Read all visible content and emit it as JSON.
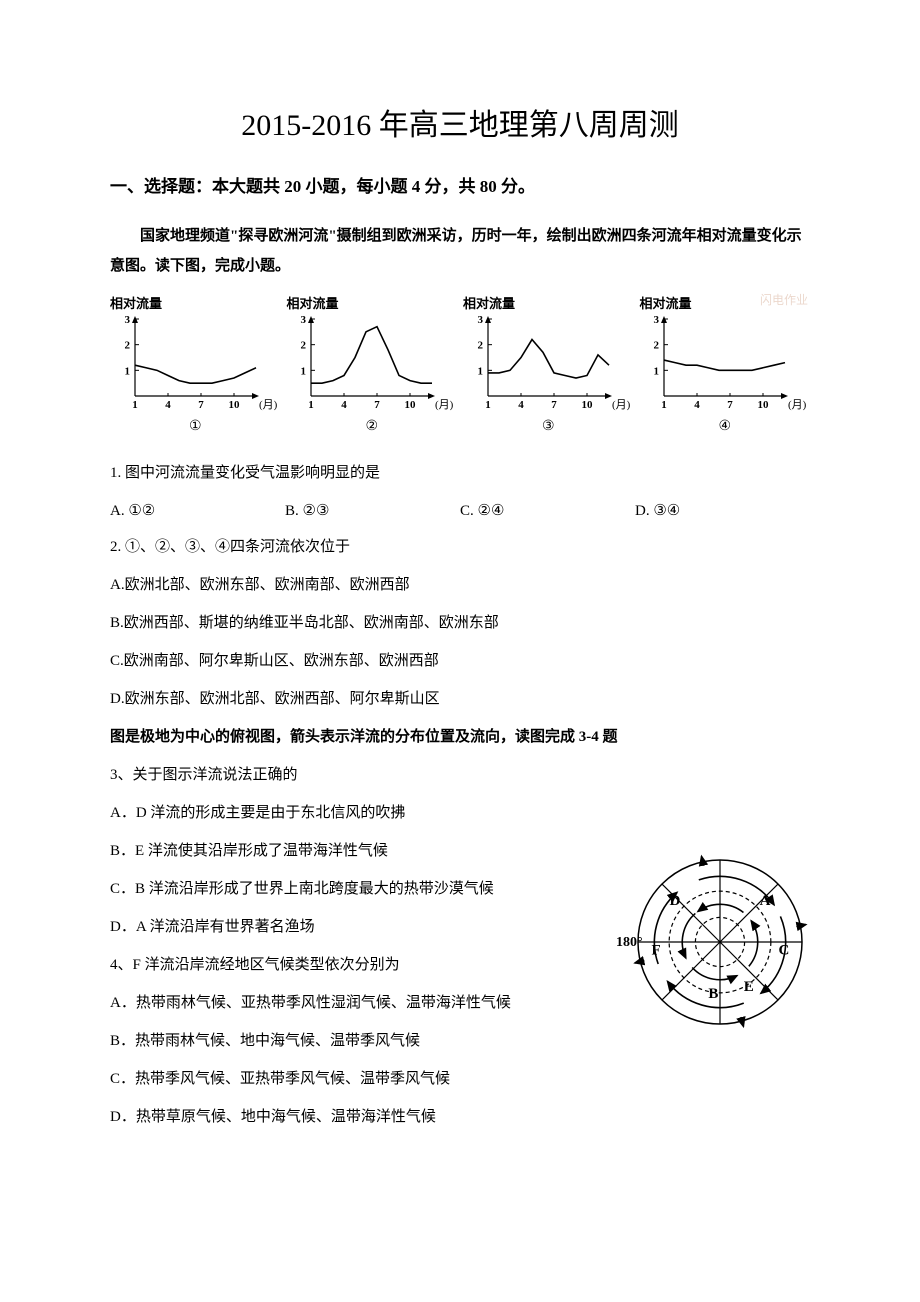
{
  "title": "2015-2016 年高三地理第八周周测",
  "section": "一、选择题：本大题共 20 小题，每小题 4 分，共 80 分。",
  "intro": "国家地理频道\"探寻欧洲河流\"摄制组到欧洲采访，历时一年，绘制出欧洲四条河流年相对流量变化示意图。读下图，完成小题。",
  "chart_meta": {
    "ylabel": "相对流量",
    "xlabel": "(月)",
    "yticks": [
      "1",
      "2",
      "3"
    ],
    "xticks": [
      "1",
      "4",
      "7",
      "10"
    ],
    "axis_color": "#000000",
    "line_color": "#000000",
    "background": "#ffffff",
    "ylim": [
      0,
      3
    ],
    "xlim": [
      1,
      12
    ],
    "captions": [
      "①",
      "②",
      "③",
      "④"
    ],
    "watermark": "闪电作业"
  },
  "chart_data": {
    "s1": [
      [
        1,
        1.2
      ],
      [
        2,
        1.1
      ],
      [
        3,
        1.0
      ],
      [
        4,
        0.8
      ],
      [
        5,
        0.6
      ],
      [
        6,
        0.5
      ],
      [
        7,
        0.5
      ],
      [
        8,
        0.5
      ],
      [
        9,
        0.6
      ],
      [
        10,
        0.7
      ],
      [
        11,
        0.9
      ],
      [
        12,
        1.1
      ]
    ],
    "s2": [
      [
        1,
        0.5
      ],
      [
        2,
        0.5
      ],
      [
        3,
        0.6
      ],
      [
        4,
        0.8
      ],
      [
        5,
        1.5
      ],
      [
        6,
        2.5
      ],
      [
        7,
        2.7
      ],
      [
        8,
        1.8
      ],
      [
        9,
        0.8
      ],
      [
        10,
        0.6
      ],
      [
        11,
        0.5
      ],
      [
        12,
        0.5
      ]
    ],
    "s3": [
      [
        1,
        0.9
      ],
      [
        2,
        0.9
      ],
      [
        3,
        1.0
      ],
      [
        4,
        1.5
      ],
      [
        5,
        2.2
      ],
      [
        6,
        1.7
      ],
      [
        7,
        0.9
      ],
      [
        8,
        0.8
      ],
      [
        9,
        0.7
      ],
      [
        10,
        0.8
      ],
      [
        11,
        1.6
      ],
      [
        12,
        1.2
      ]
    ],
    "s4": [
      [
        1,
        1.4
      ],
      [
        2,
        1.3
      ],
      [
        3,
        1.2
      ],
      [
        4,
        1.2
      ],
      [
        5,
        1.1
      ],
      [
        6,
        1.0
      ],
      [
        7,
        1.0
      ],
      [
        8,
        1.0
      ],
      [
        9,
        1.0
      ],
      [
        10,
        1.1
      ],
      [
        11,
        1.2
      ],
      [
        12,
        1.3
      ]
    ]
  },
  "q1": {
    "text": "1. 图中河流流量变化受气温影响明显的是",
    "opts": {
      "A": "A. ①②",
      "B": "B. ②③",
      "C": "C. ②④",
      "D": "D. ③④"
    }
  },
  "q2": {
    "text": "2. ①、②、③、④四条河流依次位于",
    "A": "A.欧洲北部、欧洲东部、欧洲南部、欧洲西部",
    "B": "B.欧洲西部、斯堪的纳维亚半岛北部、欧洲南部、欧洲东部",
    "C": "C.欧洲南部、阿尔卑斯山区、欧洲东部、欧洲西部",
    "D": "D.欧洲东部、欧洲北部、欧洲西部、阿尔卑斯山区"
  },
  "polar_intro": "图是极地为中心的俯视图，箭头表示洋流的分布位置及流向，读图完成 3-4 题",
  "q3": {
    "text": "3、关于图示洋流说法正确的",
    "A": "A．D 洋流的形成主要是由于东北信风的吹拂",
    "B": "B．E 洋流使其沿岸形成了温带海洋性气候",
    "C": "C．B 洋流沿岸形成了世界上南北跨度最大的热带沙漠气候",
    "D": "D．A 洋流沿岸有世界著名渔场"
  },
  "q4": {
    "text": "4、F 洋流沿岸流经地区气候类型依次分别为",
    "A": "A．热带雨林气候、亚热带季风性湿润气候、温带海洋性气候",
    "B": "B．热带雨林气候、地中海气候、温带季风气候",
    "C": "C．热带季风气候、亚热带季风气候、温带季风气候",
    "D": "D．热带草原气候、地中海气候、温带海洋性气候"
  },
  "polar_diagram": {
    "labels": [
      "A",
      "B",
      "C",
      "D",
      "E",
      "F"
    ],
    "longitude_label": "180°",
    "line_color": "#000000",
    "dash_color": "#000000"
  }
}
